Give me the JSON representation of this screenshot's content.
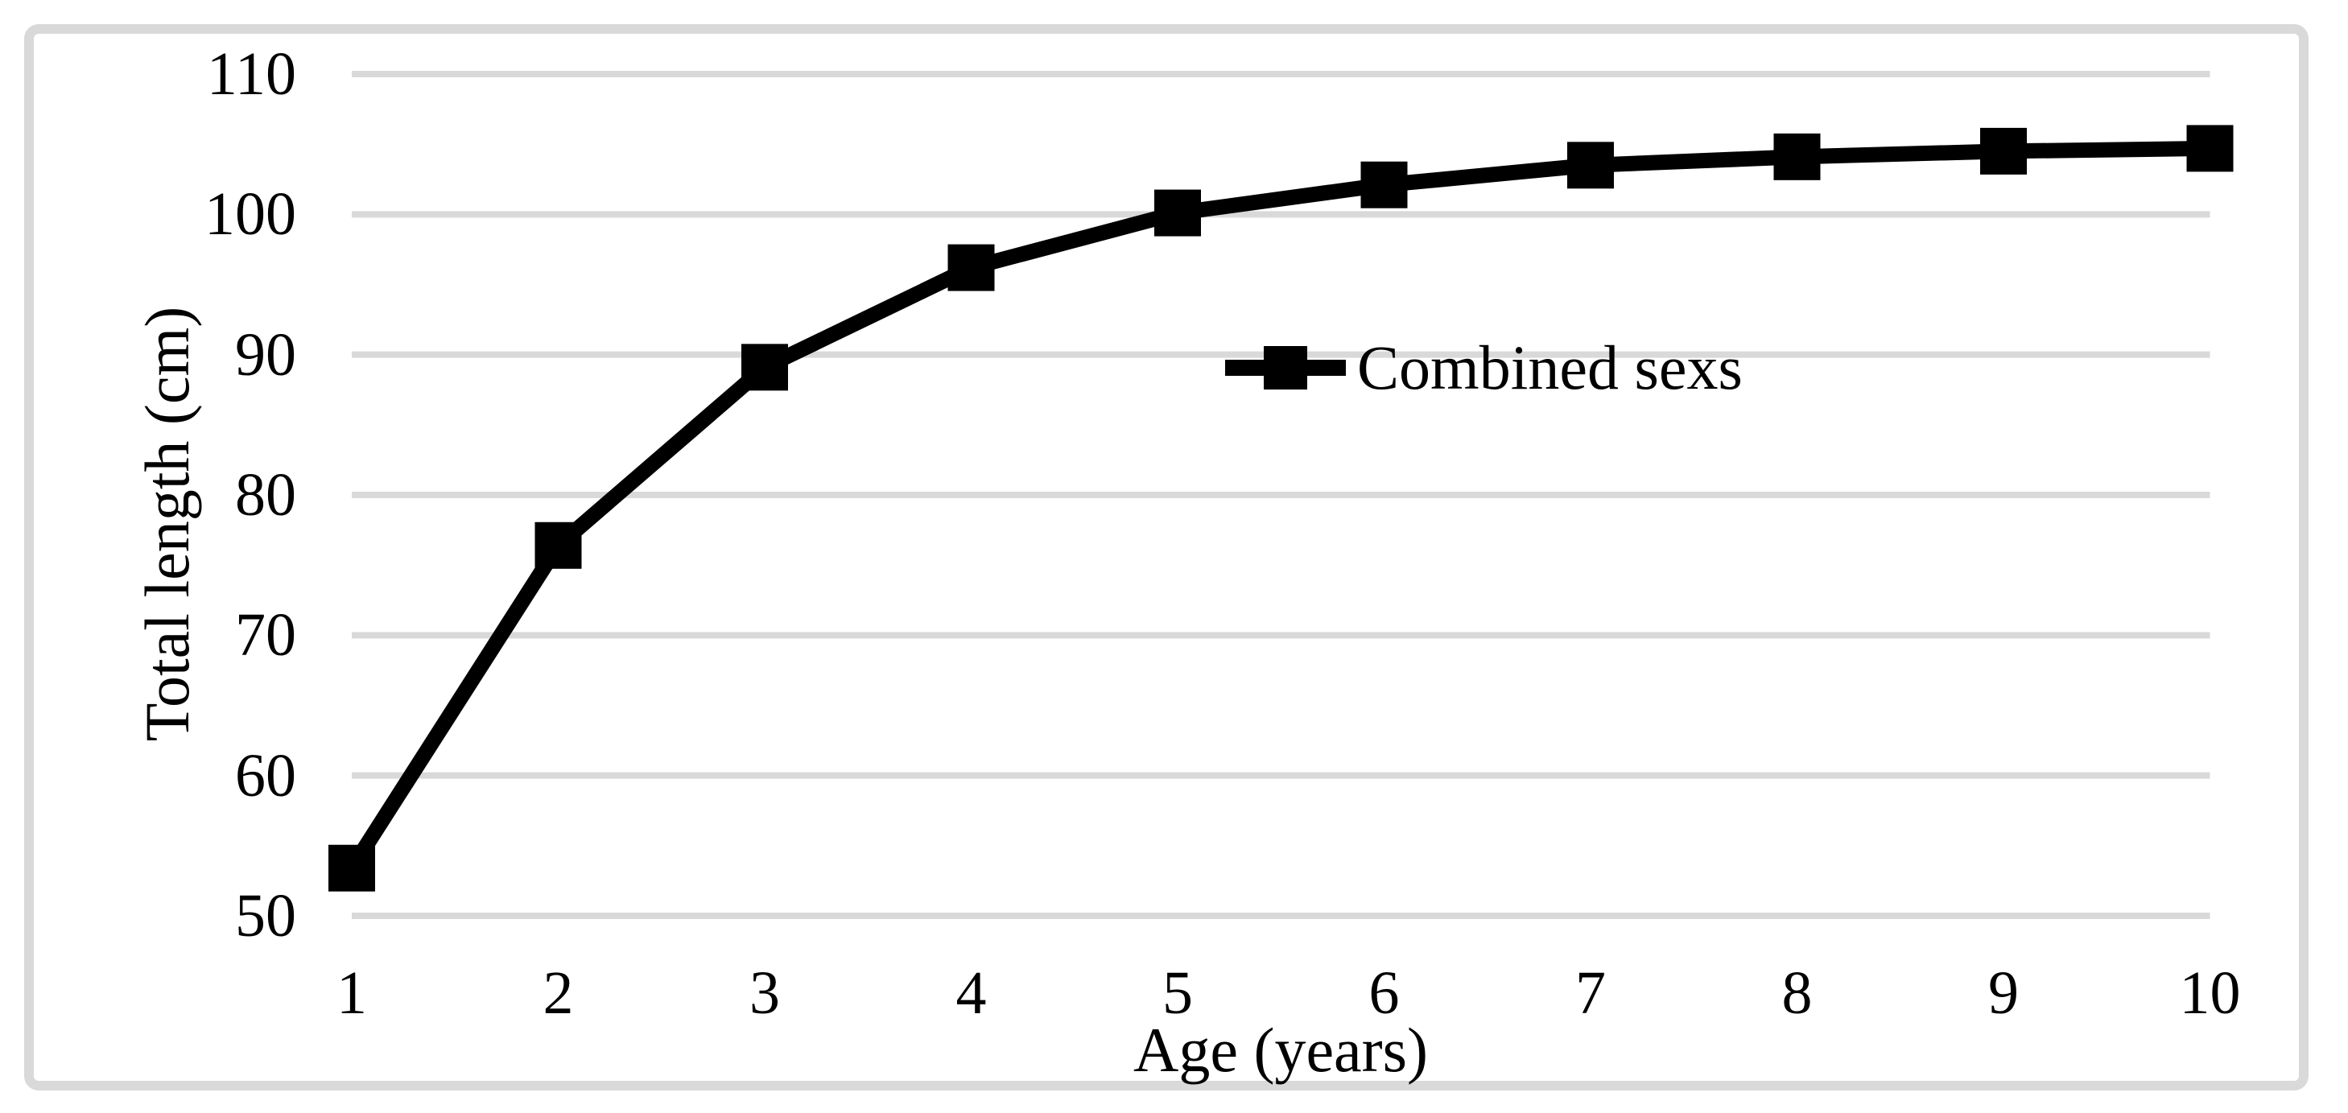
{
  "figure": {
    "background_color": "#FFFFFF",
    "border_color": "#D9D9D9",
    "text_color": "#000000"
  },
  "chart_data": {
    "type": "line",
    "title": "",
    "xlabel": "Age (years)",
    "ylabel": "Total length (cm)",
    "categories": [
      1,
      2,
      3,
      4,
      5,
      6,
      7,
      8,
      9,
      10
    ],
    "series": [
      {
        "name": "Combined sexs",
        "color": "#000000",
        "marker": "square",
        "values": [
          53.4,
          76.4,
          89.1,
          96.2,
          100.1,
          102.1,
          103.5,
          104.1,
          104.5,
          104.7
        ]
      }
    ],
    "x_ticks": [
      "1",
      "2",
      "3",
      "4",
      "5",
      "6",
      "7",
      "8",
      "9",
      "10"
    ],
    "y_ticks": [
      "110",
      "100",
      "90",
      "80",
      "70",
      "60",
      "50"
    ],
    "y_tick_values": [
      110,
      100,
      90,
      80,
      70,
      60,
      50
    ],
    "ylim": [
      50,
      110
    ],
    "xlim_categories": [
      1,
      10
    ],
    "grid": "horizontal-only",
    "gridline_color": "#D9D9D9",
    "axis_lines": "none",
    "legend_position": "inside-center-right"
  }
}
